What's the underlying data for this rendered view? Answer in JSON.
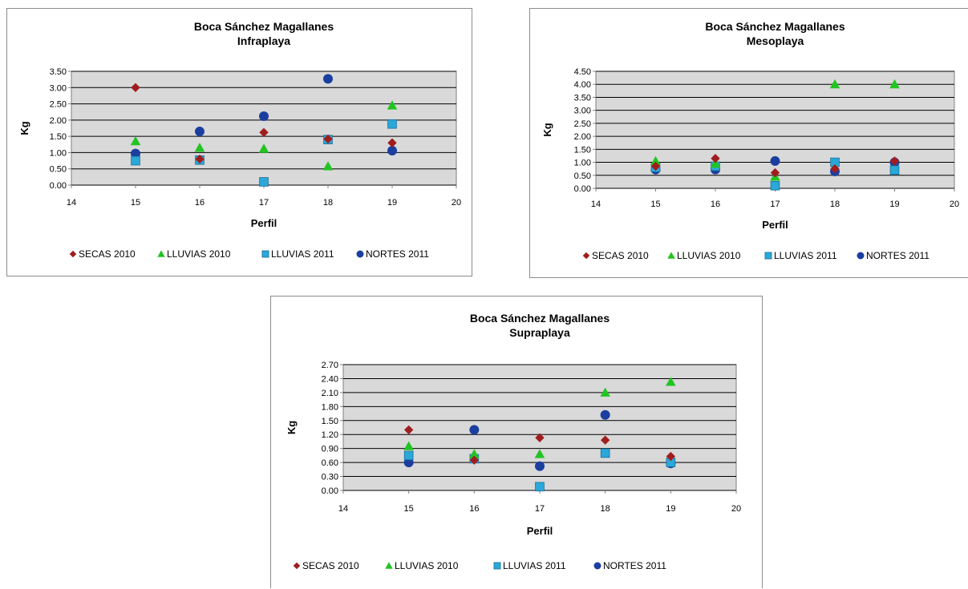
{
  "chart_data": [
    {
      "type": "scatter",
      "title": "Boca Sánchez Magallanes",
      "subtitle": "Infraplaya",
      "xlabel": "Perfil",
      "ylabel": "Kg",
      "xlim": [
        14,
        20
      ],
      "ylim": [
        0,
        3.5
      ],
      "xticks": [
        "14",
        "15",
        "16",
        "17",
        "18",
        "19",
        "20"
      ],
      "yticks": [
        "0.00",
        "0.50",
        "1.00",
        "1.50",
        "2.00",
        "2.50",
        "3.00",
        "3.50"
      ],
      "grid": true,
      "legend_position": "bottom",
      "series": [
        {
          "name": "SECAS 2010",
          "marker": "diamond",
          "color": "#a11d1d",
          "x": [
            15,
            16,
            17,
            18,
            19
          ],
          "y": [
            3.0,
            0.8,
            1.62,
            1.42,
            1.3
          ]
        },
        {
          "name": "LLUVIAS 2010",
          "marker": "triangle",
          "color": "#22c422",
          "x": [
            15,
            16,
            17,
            18,
            19
          ],
          "y": [
            1.35,
            1.15,
            1.12,
            0.58,
            2.45
          ]
        },
        {
          "name": "LLUVIAS 2011",
          "marker": "square",
          "color": "#2aa8d8",
          "x": [
            15,
            16,
            17,
            18,
            19
          ],
          "y": [
            0.75,
            0.77,
            0.1,
            1.4,
            1.88
          ]
        },
        {
          "name": "NORTES 2011",
          "marker": "circle",
          "color": "#1b3fa0",
          "x": [
            15,
            16,
            17,
            18,
            19
          ],
          "y": [
            0.97,
            1.65,
            2.12,
            3.27,
            1.06
          ]
        }
      ]
    },
    {
      "type": "scatter",
      "title": "Boca Sánchez Magallanes",
      "subtitle": "Mesoplaya",
      "xlabel": "Perfil",
      "ylabel": "Kg",
      "xlim": [
        14,
        20
      ],
      "ylim": [
        0,
        4.5
      ],
      "xticks": [
        "14",
        "15",
        "16",
        "17",
        "18",
        "19",
        "20"
      ],
      "yticks": [
        "0.00",
        "0.50",
        "1.00",
        "1.50",
        "2.00",
        "2.50",
        "3.00",
        "3.50",
        "4.00",
        "4.50"
      ],
      "grid": true,
      "legend_position": "bottom",
      "series": [
        {
          "name": "SECAS 2010",
          "marker": "diamond",
          "color": "#a11d1d",
          "x": [
            15,
            16,
            17,
            18,
            19
          ],
          "y": [
            0.85,
            1.15,
            0.6,
            0.75,
            1.05
          ]
        },
        {
          "name": "LLUVIAS 2010",
          "marker": "triangle",
          "color": "#22c422",
          "x": [
            15,
            16,
            17,
            18,
            19
          ],
          "y": [
            1.05,
            0.95,
            0.45,
            4.0,
            4.0
          ]
        },
        {
          "name": "LLUVIAS 2011",
          "marker": "square",
          "color": "#2aa8d8",
          "x": [
            15,
            16,
            17,
            18,
            19
          ],
          "y": [
            0.8,
            0.85,
            0.1,
            1.0,
            0.7
          ]
        },
        {
          "name": "NORTES 2011",
          "marker": "circle",
          "color": "#1b3fa0",
          "x": [
            15,
            16,
            17,
            18,
            19
          ],
          "y": [
            0.72,
            0.72,
            1.05,
            0.65,
            1.0
          ]
        }
      ]
    },
    {
      "type": "scatter",
      "title": "Boca Sánchez Magallanes",
      "subtitle": "Supraplaya",
      "xlabel": "Perfil",
      "ylabel": "Kg",
      "xlim": [
        14,
        20
      ],
      "ylim": [
        0,
        2.7
      ],
      "xticks": [
        "14",
        "15",
        "16",
        "17",
        "18",
        "19",
        "20"
      ],
      "yticks": [
        "0.00",
        "0.30",
        "0.60",
        "0.90",
        "1.20",
        "1.50",
        "1.80",
        "2.10",
        "2.40",
        "2.70"
      ],
      "grid": true,
      "legend_position": "bottom",
      "series": [
        {
          "name": "SECAS 2010",
          "marker": "diamond",
          "color": "#a11d1d",
          "x": [
            15,
            16,
            17,
            18,
            19
          ],
          "y": [
            1.3,
            0.65,
            1.13,
            1.08,
            0.73
          ]
        },
        {
          "name": "LLUVIAS 2010",
          "marker": "triangle",
          "color": "#22c422",
          "x": [
            15,
            16,
            17,
            18,
            19
          ],
          "y": [
            0.95,
            0.78,
            0.78,
            2.1,
            2.33
          ]
        },
        {
          "name": "LLUVIAS 2011",
          "marker": "square",
          "color": "#2aa8d8",
          "x": [
            15,
            16,
            17,
            18,
            19
          ],
          "y": [
            0.75,
            0.68,
            0.08,
            0.8,
            0.6
          ]
        },
        {
          "name": "NORTES 2011",
          "marker": "circle",
          "color": "#1b3fa0",
          "x": [
            15,
            16,
            17,
            18,
            19
          ],
          "y": [
            0.6,
            1.3,
            0.52,
            1.62,
            0.58
          ]
        }
      ]
    }
  ]
}
